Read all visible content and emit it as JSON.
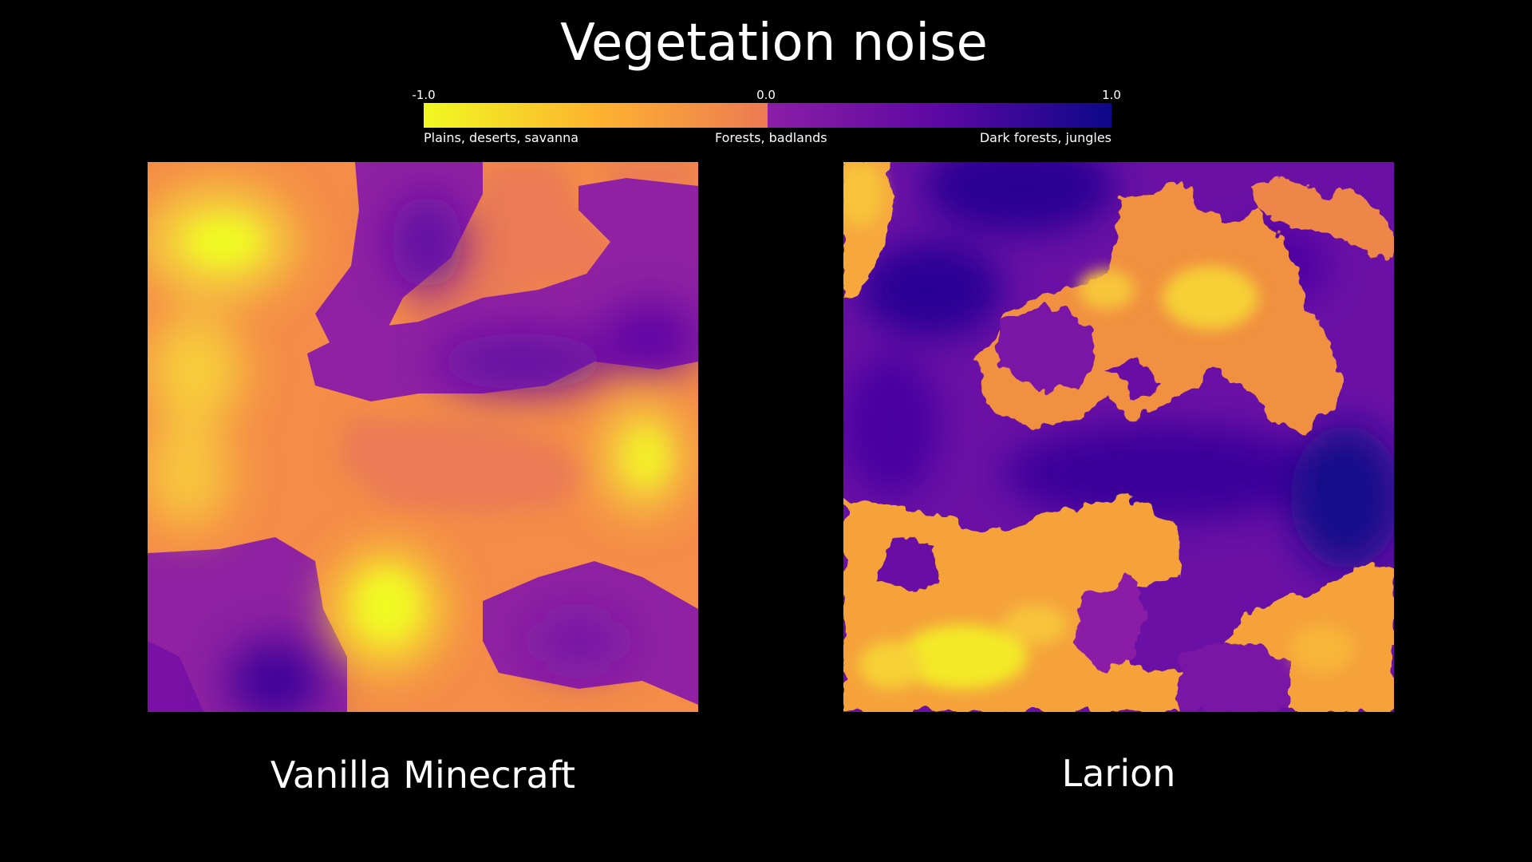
{
  "title": "Vegetation noise",
  "legend": {
    "ticks": [
      "-1.0",
      "0.0",
      "1.0"
    ],
    "categories": [
      "Plains, deserts, savanna",
      "Forests, badlands",
      "Dark forests, jungles"
    ],
    "gradient_low": [
      "#f0f921",
      "#fdb32f",
      "#ed7953"
    ],
    "gradient_high": [
      "#8b1ea5",
      "#5c08a3",
      "#0d0887"
    ]
  },
  "panels": [
    {
      "caption": "Vanilla Minecraft"
    },
    {
      "caption": "Larion"
    }
  ],
  "colors": {
    "background": "#000000",
    "text": "#ffffff",
    "yellow": "#f0f921",
    "orange": "#f89540",
    "salmon": "#ec7854",
    "purple": "#8b1ea5",
    "violet": "#5c08a3",
    "navy": "#0d0887"
  }
}
